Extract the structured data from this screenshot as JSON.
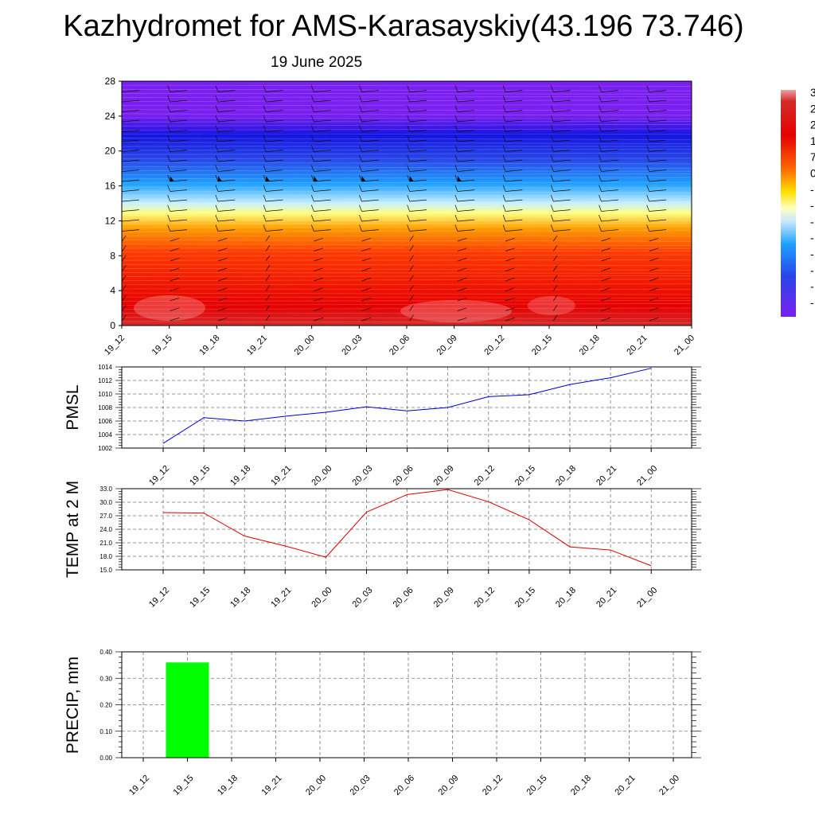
{
  "header": {
    "title": "Kazhydromet for AMS-Karasayskiy(43.196 73.746)",
    "subtitle": "19 June 2025"
  },
  "time_labels": [
    "19_12",
    "19_15",
    "19_18",
    "19_21",
    "20_00",
    "20_03",
    "20_06",
    "20_09",
    "20_12",
    "20_15",
    "20_18",
    "20_21",
    "21_00"
  ],
  "chart_data": [
    {
      "type": "heatmap",
      "title": "",
      "x": [
        "19_12",
        "19_15",
        "19_18",
        "19_21",
        "20_00",
        "20_03",
        "20_06",
        "20_09",
        "20_12",
        "20_15",
        "20_18",
        "20_21",
        "21_00"
      ],
      "yticks": [
        "0",
        "4",
        "8",
        "12",
        "16",
        "20",
        "24",
        "28"
      ],
      "ylim": [
        0,
        28
      ],
      "colorbar_labels": [
        "3",
        "2",
        "2",
        "1",
        "7",
        "0",
        "-",
        "-",
        "-",
        "-",
        "-",
        "-",
        "-",
        "-"
      ],
      "colors": [
        "#7a1ff0",
        "#1414e0",
        "#1ea0ff",
        "#ffffa0",
        "#ffa000",
        "#e60000",
        "#d42a2a"
      ],
      "overlay": "wind barbs",
      "grid": false
    },
    {
      "type": "line",
      "ylabel": "PMSL",
      "x": [
        "19_12",
        "19_15",
        "19_18",
        "19_21",
        "20_00",
        "20_03",
        "20_06",
        "20_09",
        "20_12",
        "20_15",
        "20_18",
        "20_21",
        "21_00"
      ],
      "yticks": [
        "1002",
        "1004",
        "1006",
        "1008",
        "1010",
        "1012",
        "1014"
      ],
      "ylim": [
        1002,
        1014
      ],
      "series": [
        {
          "values": [
            1002.7,
            1006.5,
            1006.0,
            1006.7,
            1007.3,
            1008.1,
            1007.5,
            1008.0,
            1009.6,
            1009.9,
            1011.4,
            1012.4,
            1013.8
          ],
          "color": "#0000cc"
        }
      ],
      "grid": true
    },
    {
      "type": "line",
      "ylabel": "TEMP at 2 M",
      "x": [
        "19_12",
        "19_15",
        "19_18",
        "19_21",
        "20_00",
        "20_03",
        "20_06",
        "20_09",
        "20_12",
        "20_15",
        "20_18",
        "20_21",
        "21_00"
      ],
      "yticks": [
        "15.0",
        "18.0",
        "21.0",
        "24.0",
        "27.0",
        "30.0",
        "33.0"
      ],
      "ylim": [
        15,
        33
      ],
      "series": [
        {
          "values": [
            27.7,
            27.6,
            22.5,
            20.3,
            17.8,
            27.8,
            31.7,
            32.8,
            30.1,
            26.1,
            20.1,
            19.4,
            15.9
          ],
          "color": "#dd0000"
        }
      ],
      "grid": true
    },
    {
      "type": "bar",
      "ylabel": "PRECIP, mm",
      "categories": [
        "19_12",
        "19_15",
        "19_18",
        "19_21",
        "20_00",
        "20_03",
        "20_06",
        "20_09",
        "20_12",
        "20_15",
        "20_18",
        "20_21",
        "21_00"
      ],
      "yticks": [
        "0.00",
        "0.10",
        "0.20",
        "0.30",
        "0.40"
      ],
      "ylim": [
        0,
        0.4
      ],
      "values": [
        0,
        0.36,
        0,
        0,
        0,
        0,
        0,
        0,
        0,
        0,
        0,
        0,
        0
      ],
      "color": "#00ff00",
      "grid": true
    }
  ]
}
